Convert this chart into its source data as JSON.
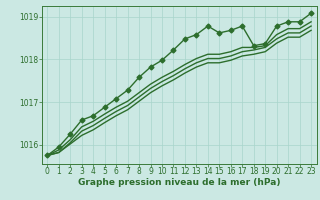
{
  "xlabel": "Graphe pression niveau de la mer (hPa)",
  "background_color": "#cbe8e3",
  "grid_color": "#a8d5cc",
  "line_color": "#2d6e2d",
  "xlim": [
    -0.5,
    23.5
  ],
  "ylim": [
    1015.55,
    1019.25
  ],
  "yticks": [
    1016,
    1017,
    1018,
    1019
  ],
  "xticks": [
    0,
    1,
    2,
    3,
    4,
    5,
    6,
    7,
    8,
    9,
    10,
    11,
    12,
    13,
    14,
    15,
    16,
    17,
    18,
    19,
    20,
    21,
    22,
    23
  ],
  "series": [
    [
      1015.75,
      1015.95,
      1016.25,
      1016.58,
      1016.68,
      1016.88,
      1017.08,
      1017.28,
      1017.58,
      1017.82,
      1017.98,
      1018.22,
      1018.48,
      1018.58,
      1018.78,
      1018.62,
      1018.68,
      1018.78,
      1018.32,
      1018.37,
      1018.78,
      1018.88,
      1018.88,
      1019.08
    ],
    [
      1015.75,
      1015.88,
      1016.12,
      1016.42,
      1016.55,
      1016.72,
      1016.88,
      1017.02,
      1017.22,
      1017.42,
      1017.58,
      1017.72,
      1017.88,
      1018.02,
      1018.12,
      1018.12,
      1018.18,
      1018.28,
      1018.28,
      1018.32,
      1018.58,
      1018.72,
      1018.72,
      1018.88
    ],
    [
      1015.75,
      1015.82,
      1016.05,
      1016.32,
      1016.45,
      1016.62,
      1016.78,
      1016.92,
      1017.12,
      1017.32,
      1017.48,
      1017.62,
      1017.78,
      1017.92,
      1018.02,
      1018.02,
      1018.08,
      1018.18,
      1018.22,
      1018.28,
      1018.48,
      1018.62,
      1018.62,
      1018.78
    ],
    [
      1015.75,
      1015.82,
      1016.02,
      1016.22,
      1016.35,
      1016.52,
      1016.68,
      1016.82,
      1017.02,
      1017.22,
      1017.38,
      1017.52,
      1017.68,
      1017.82,
      1017.92,
      1017.92,
      1017.98,
      1018.08,
      1018.12,
      1018.18,
      1018.38,
      1018.52,
      1018.52,
      1018.68
    ]
  ],
  "marker_series_idx": 0,
  "marker": "D",
  "marker_size": 2.5,
  "line_width": 1.0,
  "fontsize_label": 6.5,
  "fontsize_tick": 5.5,
  "spine_color": "#3a7a3a"
}
